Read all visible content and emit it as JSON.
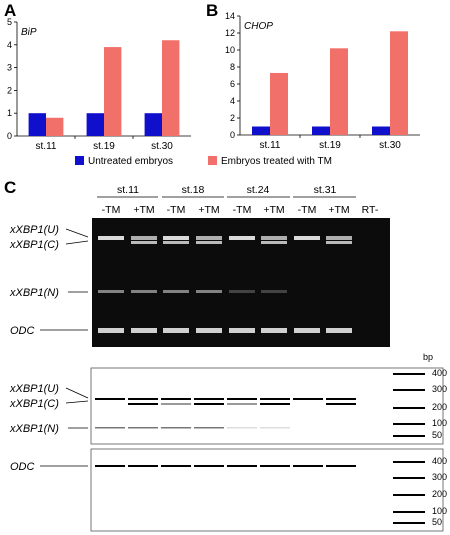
{
  "panels": {
    "a": "A",
    "b": "B",
    "c": "C"
  },
  "colors": {
    "untreated": "#1010cc",
    "treated": "#f2706a",
    "gel_bg": "#0c0c0c",
    "gel_band": "#e6e6e6"
  },
  "chart_data": [
    {
      "type": "bar",
      "title": "BiP",
      "categories": [
        "st.11",
        "st.19",
        "st.30"
      ],
      "series": [
        {
          "name": "Untreated embryos",
          "values": [
            1.0,
            1.0,
            1.0
          ]
        },
        {
          "name": "Embryos treated with TM",
          "values": [
            0.8,
            3.9,
            4.2
          ]
        }
      ],
      "ylim": [
        0,
        5
      ],
      "yticks": [
        "0",
        "1",
        "2",
        "3",
        "4",
        "5"
      ],
      "grid": false
    },
    {
      "type": "bar",
      "title": "CHOP",
      "categories": [
        "st.11",
        "st.19",
        "st.30"
      ],
      "series": [
        {
          "name": "Untreated embryos",
          "values": [
            1.0,
            1.0,
            1.0
          ]
        },
        {
          "name": "Embryos treated with TM",
          "values": [
            7.3,
            10.2,
            12.2
          ]
        }
      ],
      "ylim": [
        0,
        14
      ],
      "yticks": [
        "0",
        "2",
        "4",
        "6",
        "8",
        "10",
        "12",
        "14"
      ],
      "grid": false
    }
  ],
  "legend": {
    "untreated": "Untreated embryos",
    "treated": "Embryos treated with TM"
  },
  "gel": {
    "stages": [
      "st.11",
      "st.18",
      "st.24",
      "st.31"
    ],
    "lanes": [
      "-TM",
      "+TM",
      "-TM",
      "+TM",
      "-TM",
      "+TM",
      "-TM",
      "+TM",
      "RT-"
    ],
    "labels": {
      "xbp1_u": "xXBP1(U)",
      "xbp1_c": "xXBP1(C)",
      "xbp1_n": "xXBP1(N)",
      "odc": "ODC"
    },
    "bp_unit": "bp",
    "ladder_top": [
      "400",
      "300",
      "200",
      "100",
      "50"
    ],
    "ladder_bottom": [
      "400",
      "300",
      "200",
      "100",
      "50"
    ]
  }
}
